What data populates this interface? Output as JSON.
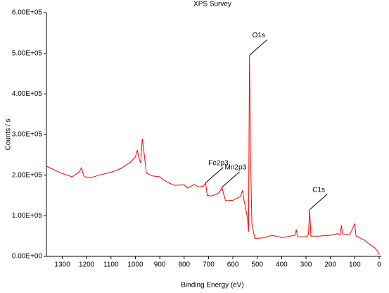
{
  "chart_data": {
    "type": "line",
    "title": "XPS Survey",
    "x_label": "Binding Energy (eV)",
    "y_label": "Counts / s",
    "xlim": [
      1365,
      0
    ],
    "xticks": [
      1300,
      1200,
      1100,
      1000,
      900,
      800,
      700,
      600,
      500,
      400,
      300,
      200,
      100,
      0
    ],
    "ylim": [
      0,
      600000
    ],
    "yticks": [
      {
        "value": 0,
        "label": "0.00E+00"
      },
      {
        "value": 100000,
        "label": "1.00E+05"
      },
      {
        "value": 200000,
        "label": "2.00E+05"
      },
      {
        "value": 300000,
        "label": "3.00E+05"
      },
      {
        "value": 400000,
        "label": "4.00E+05"
      },
      {
        "value": 500000,
        "label": "5.00E+05"
      },
      {
        "value": 600000,
        "label": "6.00E+05"
      }
    ],
    "x": [
      1365,
      1330,
      1300,
      1260,
      1230,
      1222,
      1210,
      1180,
      1150,
      1100,
      1060,
      1020,
      1000,
      992,
      985,
      978,
      972,
      966,
      955,
      930,
      900,
      885,
      860,
      840,
      800,
      785,
      760,
      740,
      720,
      712,
      705,
      690,
      670,
      655,
      645,
      640,
      630,
      600,
      570,
      560,
      555,
      548,
      540,
      536,
      532,
      528,
      522,
      510,
      470,
      440,
      410,
      400,
      380,
      345,
      340,
      335,
      300,
      290,
      285,
      280,
      250,
      200,
      170,
      160,
      155,
      150,
      120,
      105,
      100,
      95,
      60,
      40,
      20,
      5,
      0
    ],
    "series": [
      {
        "color": "#ff0000",
        "values": [
          222000,
          212000,
          204000,
          196000,
          208000,
          218000,
          196000,
          194000,
          200000,
          207000,
          216000,
          232000,
          245000,
          262000,
          240000,
          230000,
          290000,
          262000,
          205000,
          198000,
          196000,
          188000,
          180000,
          175000,
          176000,
          168000,
          177000,
          171000,
          173000,
          181000,
          150000,
          149000,
          152000,
          158000,
          170000,
          158000,
          137000,
          138000,
          147000,
          162000,
          140000,
          120000,
          92000,
          60000,
          495000,
          260000,
          80000,
          44000,
          46000,
          52000,
          48000,
          46000,
          48000,
          52000,
          66000,
          48000,
          48000,
          54000,
          115000,
          50000,
          50000,
          52000,
          56000,
          52000,
          77000,
          55000,
          54000,
          74000,
          80000,
          50000,
          40000,
          30000,
          22000,
          12000,
          4000
        ]
      }
    ],
    "annotations": [
      {
        "text": "O1s",
        "x": 532,
        "y": 495000
      },
      {
        "text": "C1s",
        "x": 285,
        "y": 115000
      },
      {
        "text": "Fe2p3",
        "x": 712,
        "y": 181000
      },
      {
        "text": "Mn2p3",
        "x": 645,
        "y": 170000
      }
    ]
  }
}
